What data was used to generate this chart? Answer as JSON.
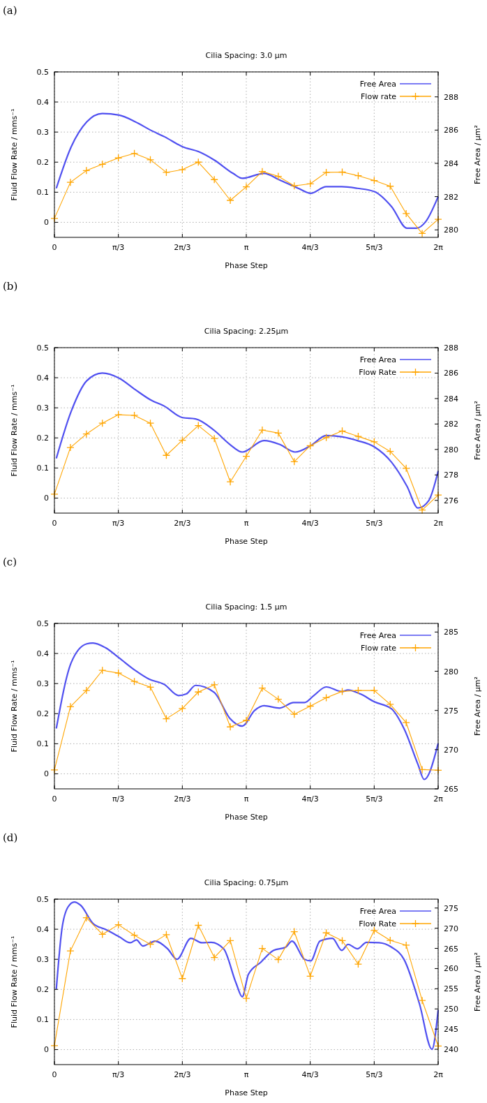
{
  "chart_data": [
    {
      "type": "line",
      "title": "Cilia Spacing: 3.0 µm",
      "xlabel": "Phase Step",
      "ylabel": "Fluid Flow Rate / mms⁻¹",
      "y2label": "Free Area / µm²",
      "annotations": [
        "(a)"
      ],
      "x": [
        0,
        0.2618,
        0.5236,
        0.7854,
        1.0472,
        1.309,
        1.5708,
        1.8326,
        2.0944,
        2.3562,
        2.618,
        2.8798,
        3.1416,
        3.4034,
        3.6652,
        3.927,
        4.1888,
        4.4506,
        4.7124,
        4.9742,
        5.236,
        5.4978,
        5.7596,
        6.0214,
        6.2832
      ],
      "xlim": [
        0,
        6.2832
      ],
      "xticks": [
        {
          "value": 0,
          "label": "0"
        },
        {
          "value": 1.0472,
          "label": "π/3"
        },
        {
          "value": 2.0944,
          "label": "2π/3"
        },
        {
          "value": 3.1416,
          "label": "π"
        },
        {
          "value": 4.1888,
          "label": "4π/3"
        },
        {
          "value": 5.236,
          "label": "5π/3"
        },
        {
          "value": 6.2832,
          "label": "2π"
        }
      ],
      "ylim": [
        -0.05,
        0.5
      ],
      "yticks": [
        0,
        0.1,
        0.2,
        0.3,
        0.4,
        0.5
      ],
      "y2lim": [
        279.55,
        289.5
      ],
      "y2ticks": [
        280,
        282,
        284,
        286,
        288
      ],
      "grid": true,
      "legend": "top right",
      "series": [
        {
          "name": "Free Area",
          "color": "#5050f0",
          "axis": "y2",
          "marker": "none",
          "x": [
            0.031,
            0.275,
            0.53,
            0.784,
            1.059,
            1.324,
            1.573,
            1.802,
            2.098,
            2.363,
            2.617,
            2.923,
            3.075,
            3.432,
            3.686,
            3.992,
            4.196,
            4.45,
            4.705,
            4.96,
            5.24,
            5.52,
            5.774,
            5.927,
            6.08,
            6.283
          ],
          "values": [
            282.5,
            285.0,
            286.5,
            287.0,
            286.9,
            286.5,
            286.0,
            285.6,
            285.0,
            284.7,
            284.2,
            283.4,
            283.1,
            283.4,
            283.0,
            282.5,
            282.2,
            282.6,
            282.6,
            282.5,
            282.3,
            281.4,
            280.1,
            280.1,
            280.5,
            282.0
          ]
        },
        {
          "name": "Flow rate",
          "color": "#ffa500",
          "marker": "cross",
          "values": [
            0.013,
            0.133,
            0.172,
            0.193,
            0.214,
            0.229,
            0.208,
            0.166,
            0.175,
            0.2,
            0.142,
            0.073,
            0.118,
            0.169,
            0.153,
            0.121,
            0.128,
            0.166,
            0.167,
            0.155,
            0.139,
            0.12,
            0.029,
            -0.037,
            0.01
          ]
        }
      ]
    },
    {
      "type": "line",
      "title": "Cilia Spacing: 2.25µm",
      "xlabel": "Phase Step",
      "ylabel": "Fluid Flow Rate / mms⁻¹",
      "y2label": "Free Area / µm²",
      "annotations": [
        "(b)"
      ],
      "x": [
        0,
        0.2618,
        0.5236,
        0.7854,
        1.0472,
        1.309,
        1.5708,
        1.8326,
        2.0944,
        2.3562,
        2.618,
        2.8798,
        3.1416,
        3.4034,
        3.6652,
        3.927,
        4.1888,
        4.4506,
        4.7124,
        4.9742,
        5.236,
        5.4978,
        5.7596,
        6.0214,
        6.2832
      ],
      "xlim": [
        0,
        6.2832
      ],
      "xticks": [
        {
          "value": 0,
          "label": "0"
        },
        {
          "value": 1.0472,
          "label": "π/3"
        },
        {
          "value": 2.0944,
          "label": "2π/3"
        },
        {
          "value": 3.1416,
          "label": "π"
        },
        {
          "value": 4.1888,
          "label": "4π/3"
        },
        {
          "value": 5.236,
          "label": "5π/3"
        },
        {
          "value": 6.2832,
          "label": "2π"
        }
      ],
      "ylim": [
        -0.05,
        0.5
      ],
      "yticks": [
        0,
        0.1,
        0.2,
        0.3,
        0.4,
        0.5
      ],
      "y2lim": [
        275,
        288
      ],
      "y2ticks": [
        276,
        278,
        280,
        282,
        284,
        286,
        288
      ],
      "grid": true,
      "legend": "top right",
      "series": [
        {
          "name": "Free Area",
          "color": "#5050f0",
          "axis": "y2",
          "marker": "none",
          "x": [
            0.031,
            0.275,
            0.53,
            0.784,
            1.059,
            1.324,
            1.573,
            1.802,
            2.098,
            2.312,
            2.617,
            2.872,
            3.075,
            3.432,
            3.686,
            3.941,
            4.196,
            4.45,
            4.705,
            4.96,
            5.24,
            5.52,
            5.774,
            5.953,
            6.131,
            6.283
          ],
          "values": [
            279.3,
            283.0,
            285.4,
            286.0,
            285.6,
            284.7,
            283.9,
            283.4,
            282.5,
            282.4,
            281.5,
            280.4,
            279.8,
            280.7,
            280.4,
            279.8,
            280.3,
            281.1,
            281.0,
            280.7,
            280.2,
            279.0,
            277.1,
            275.4,
            276.0,
            278.3
          ]
        },
        {
          "name": "Flow Rate",
          "color": "#ffa500",
          "marker": "cross",
          "values": [
            0.013,
            0.168,
            0.213,
            0.249,
            0.277,
            0.275,
            0.249,
            0.142,
            0.192,
            0.241,
            0.198,
            0.054,
            0.139,
            0.226,
            0.216,
            0.121,
            0.174,
            0.201,
            0.223,
            0.205,
            0.187,
            0.155,
            0.099,
            -0.04,
            0.01
          ]
        }
      ]
    },
    {
      "type": "line",
      "title": "Cilia Spacing: 1.5 µm",
      "xlabel": "Phase Step",
      "ylabel": "Fluid Flow Rate / mms⁻¹",
      "y2label": "Free Area / µm²",
      "annotations": [
        "(c)"
      ],
      "x": [
        0,
        0.2618,
        0.5236,
        0.7854,
        1.0472,
        1.309,
        1.5708,
        1.8326,
        2.0944,
        2.3562,
        2.618,
        2.8798,
        3.1416,
        3.4034,
        3.6652,
        3.927,
        4.1888,
        4.4506,
        4.7124,
        4.9742,
        5.236,
        5.4978,
        5.7596,
        6.0214,
        6.2832
      ],
      "xlim": [
        0,
        6.2832
      ],
      "xticks": [
        {
          "value": 0,
          "label": "0"
        },
        {
          "value": 1.0472,
          "label": "π/3"
        },
        {
          "value": 2.0944,
          "label": "2π/3"
        },
        {
          "value": 3.1416,
          "label": "π"
        },
        {
          "value": 4.1888,
          "label": "4π/3"
        },
        {
          "value": 5.236,
          "label": "5π/3"
        },
        {
          "value": 6.2832,
          "label": "2π"
        }
      ],
      "ylim": [
        -0.05,
        0.5
      ],
      "yticks": [
        0,
        0.1,
        0.2,
        0.3,
        0.4,
        0.5
      ],
      "y2lim": [
        265,
        286.1
      ],
      "y2ticks": [
        265,
        270,
        275,
        280,
        285
      ],
      "grid": true,
      "legend": "top right",
      "series": [
        {
          "name": "Free Area",
          "color": "#5050f0",
          "axis": "y2",
          "marker": "none",
          "x": [
            0.031,
            0.275,
            0.53,
            0.631,
            0.835,
            1.059,
            1.324,
            1.548,
            1.802,
            2.032,
            2.159,
            2.312,
            2.617,
            2.872,
            3.075,
            3.279,
            3.432,
            3.686,
            3.916,
            4.094,
            4.247,
            4.45,
            4.705,
            4.807,
            5.01,
            5.24,
            5.52,
            5.723,
            5.953,
            6.054,
            6.283
          ],
          "values": [
            272.7,
            281.1,
            283.5,
            283.6,
            283.0,
            281.7,
            280.1,
            279.0,
            278.3,
            276.9,
            277.1,
            278.2,
            277.3,
            274.0,
            273.0,
            275.0,
            275.6,
            275.3,
            276.0,
            276.0,
            276.9,
            278.0,
            277.4,
            277.6,
            277.1,
            276.1,
            275.2,
            272.7,
            268.1,
            266.2,
            270.8
          ]
        },
        {
          "name": "Flow rate",
          "color": "#ffa500",
          "marker": "cross",
          "values": [
            0.013,
            0.223,
            0.277,
            0.344,
            0.335,
            0.307,
            0.288,
            0.183,
            0.217,
            0.272,
            0.296,
            0.156,
            0.178,
            0.285,
            0.248,
            0.198,
            0.225,
            0.253,
            0.274,
            0.277,
            0.277,
            0.231,
            0.17,
            0.014,
            0.012
          ]
        }
      ]
    },
    {
      "type": "line",
      "title": "Cilia Spacing: 0.75µm",
      "xlabel": "Phase Step",
      "ylabel": "Fluid Flow Rate / mms⁻¹",
      "y2label": "Free Area / µm²",
      "annotations": [
        "(d)"
      ],
      "x": [
        0,
        0.2618,
        0.5236,
        0.7854,
        1.0472,
        1.309,
        1.5708,
        1.8326,
        2.0944,
        2.3562,
        2.618,
        2.8798,
        3.1416,
        3.4034,
        3.6652,
        3.927,
        4.1888,
        4.4506,
        4.7124,
        4.9742,
        5.236,
        5.4978,
        5.7596,
        6.0214,
        6.2832
      ],
      "xlim": [
        0,
        6.2832
      ],
      "xticks": [
        {
          "value": 0,
          "label": "0"
        },
        {
          "value": 1.0472,
          "label": "π/3"
        },
        {
          "value": 2.0944,
          "label": "2π/3"
        },
        {
          "value": 3.1416,
          "label": "π"
        },
        {
          "value": 4.1888,
          "label": "4π/3"
        },
        {
          "value": 5.236,
          "label": "5π/3"
        },
        {
          "value": 6.2832,
          "label": "2π"
        }
      ],
      "ylim": [
        -0.05,
        0.5
      ],
      "yticks": [
        0,
        0.1,
        0.2,
        0.3,
        0.4,
        0.5
      ],
      "y2lim": [
        236.2,
        277.2
      ],
      "y2ticks": [
        240,
        245,
        250,
        255,
        260,
        265,
        270,
        275
      ],
      "grid": true,
      "legend": "top right",
      "series": [
        {
          "name": "Free Area",
          "color": "#5050f0",
          "axis": "y2",
          "marker": "none",
          "x": [
            0.031,
            0.122,
            0.224,
            0.326,
            0.428,
            0.631,
            0.835,
            1.059,
            1.242,
            1.344,
            1.446,
            1.65,
            1.853,
            2.006,
            2.235,
            2.414,
            2.566,
            2.77,
            2.974,
            3.075,
            3.177,
            3.381,
            3.585,
            3.788,
            3.89,
            4.094,
            4.196,
            4.348,
            4.552,
            4.705,
            4.807,
            4.96,
            5.112,
            5.316,
            5.52,
            5.723,
            5.978,
            6.182,
            6.283
          ],
          "values": [
            254.9,
            269.7,
            275.3,
            276.5,
            275.7,
            271.2,
            269.7,
            267.9,
            266.4,
            267.1,
            265.6,
            266.8,
            264.9,
            262.3,
            267.5,
            266.4,
            266.5,
            264.9,
            256.4,
            253.0,
            258.6,
            261.6,
            264.5,
            265.3,
            266.8,
            262.3,
            261.9,
            266.8,
            267.5,
            264.5,
            266.0,
            264.9,
            266.5,
            266.4,
            265.3,
            262.3,
            251.2,
            240.0,
            249.7
          ]
        },
        {
          "name": "Flow Rate",
          "color": "#ffa500",
          "marker": "cross",
          "values": [
            0.013,
            0.328,
            0.438,
            0.383,
            0.415,
            0.38,
            0.35,
            0.382,
            0.236,
            0.413,
            0.306,
            0.362,
            0.17,
            0.336,
            0.299,
            0.392,
            0.244,
            0.388,
            0.362,
            0.284,
            0.396,
            0.363,
            0.347,
            0.163,
            0.012
          ]
        }
      ]
    }
  ]
}
